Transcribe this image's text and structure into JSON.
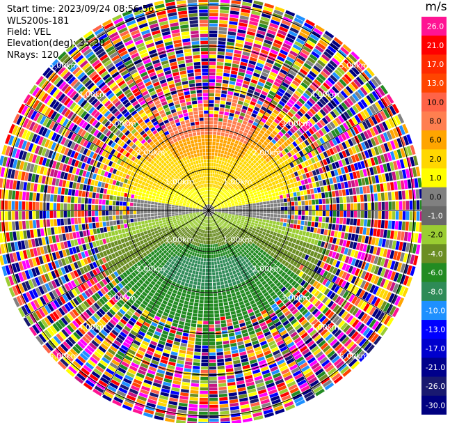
{
  "header": {
    "start_time": "Start time: 2023/09/24 08:56:56",
    "site": "WLS200s-181",
    "field": "Field: VEL",
    "elevation": "Elevation(deg): 35.30",
    "nrays": "NRays: 120"
  },
  "colorbar": {
    "unit": "m/s",
    "ticks": [
      "26.0",
      "21.0",
      "17.0",
      "13.0",
      "10.0",
      "8.0",
      "6.0",
      "2.0",
      "1.0",
      "0.0",
      "-1.0",
      "-2.0",
      "-4.0",
      "-6.0",
      "-8.0",
      "-10.0",
      "-13.0",
      "-17.0",
      "-21.0",
      "-26.0",
      "-30.0"
    ],
    "colors": [
      "#ff1493",
      "#ff0000",
      "#ff2a00",
      "#ff4500",
      "#ff6347",
      "#ff7f50",
      "#ffa500",
      "#ffd700",
      "#ffff00",
      "#808080",
      "#696969",
      "#9acd32",
      "#6b8e23",
      "#228b22",
      "#2e8b57",
      "#1e90ff",
      "#0000ff",
      "#0000cd",
      "#00008b",
      "#191970",
      "#000080"
    ]
  },
  "chart_data": {
    "type": "ppi",
    "field": "VEL",
    "units": "m/s",
    "range_rings_km": [
      "1.00km",
      "2.00km",
      "3.00km",
      "4.00km",
      "5.00km"
    ],
    "nrays": 120,
    "elevation_deg": 35.3,
    "vmin": -30.0,
    "vmax": 26.0
  }
}
